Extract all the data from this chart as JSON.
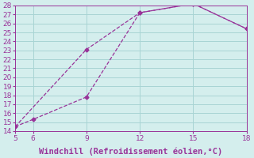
{
  "line1_x": [
    5,
    6,
    9,
    12,
    15,
    18
  ],
  "line1_y": [
    14.5,
    15.3,
    17.8,
    27.2,
    28.2,
    25.4
  ],
  "line2_x": [
    5,
    9,
    12,
    15,
    18
  ],
  "line2_y": [
    14.5,
    23.1,
    27.2,
    28.2,
    25.4
  ],
  "line_color": "#993399",
  "marker": "D",
  "marker_size": 2.5,
  "xlabel": "Windchill (Refroidissement éolien,°C)",
  "xlim": [
    5,
    18
  ],
  "ylim": [
    14,
    28
  ],
  "xticks": [
    5,
    6,
    9,
    12,
    15,
    18
  ],
  "yticks": [
    14,
    15,
    16,
    17,
    18,
    19,
    20,
    21,
    22,
    23,
    24,
    25,
    26,
    27,
    28
  ],
  "bg_color": "#d4eeed",
  "grid_color": "#a8d4d4",
  "tick_color": "#993399",
  "label_color": "#993399",
  "xlabel_fontsize": 7.5
}
